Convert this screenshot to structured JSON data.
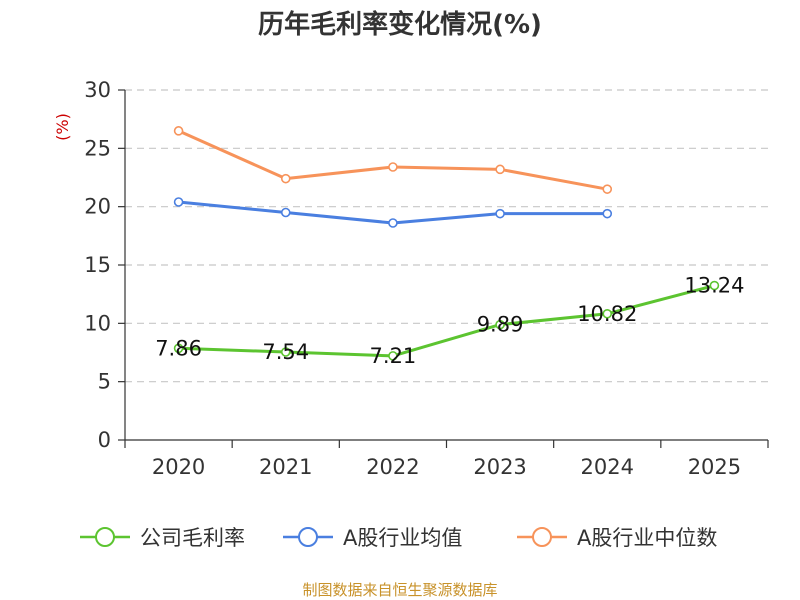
{
  "chart_data": {
    "type": "line",
    "title": "历年毛利率变化情况(%)",
    "ylabel": "(%)",
    "xlabel": "",
    "categories": [
      "2020",
      "2021",
      "2022",
      "2023",
      "2024",
      "2025"
    ],
    "ylim": [
      0,
      30
    ],
    "yticks": [
      0,
      5,
      10,
      15,
      20,
      25,
      30
    ],
    "grid": true,
    "legend_position": "bottom",
    "series": [
      {
        "name": "公司毛利率",
        "color": "#5cc430",
        "values": [
          7.86,
          7.54,
          7.21,
          9.89,
          10.82,
          13.24
        ],
        "labels": [
          "7.86",
          "7.54",
          "7.21",
          "9.89",
          "10.82",
          "13.24"
        ]
      },
      {
        "name": "A股行业均值",
        "color": "#4a7fe0",
        "values": [
          20.4,
          19.5,
          18.6,
          19.4,
          19.4,
          null
        ]
      },
      {
        "name": "A股行业中位数",
        "color": "#f7935a",
        "values": [
          26.5,
          22.4,
          23.4,
          23.2,
          21.5,
          null
        ]
      }
    ],
    "source": "制图数据来自恒生聚源数据库"
  }
}
